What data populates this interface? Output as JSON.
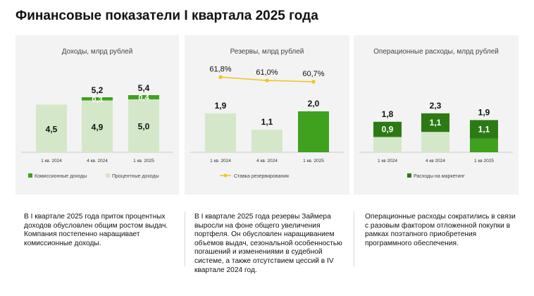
{
  "page": {
    "title": "Финансовые показатели I квартала 2025 года"
  },
  "colors": {
    "light": "#d4e8c9",
    "mid": "#3fa11e",
    "dark": "#2c7a14",
    "line": "#f0c419",
    "panel_bg": "#f2f3f2"
  },
  "chart_data": [
    {
      "type": "bar",
      "stacked": true,
      "title": "Доходы, млрд рублей",
      "categories": [
        "1 кв. 2024",
        "4 кв. 2024",
        "1 кв. 2025"
      ],
      "series": [
        {
          "name": "Процентные доходы",
          "values": [
            4.5,
            4.9,
            5.0
          ],
          "labels": [
            "4,5",
            "4,9",
            "5,0"
          ]
        },
        {
          "name": "Комиссионные доходы",
          "values": [
            0,
            0.3,
            0.4
          ],
          "labels": [
            "",
            "0,3",
            "0,4"
          ]
        }
      ],
      "totals": [
        "",
        "5,2",
        "5,4"
      ],
      "legend": [
        "Комиссионные доходы",
        "Процентные доходы"
      ],
      "legend_position": "bottom-left"
    },
    {
      "type": "bar",
      "title": "Резервы, млрд рублей",
      "categories": [
        "1 кв. 2024",
        "4 кв. 2024",
        "1 кв. 2025"
      ],
      "series": [
        {
          "values": [
            1.9,
            1.1,
            2.0
          ],
          "labels": [
            "1,9",
            "1,1",
            "2,0"
          ]
        },
        {
          "name": "Ставка резервирования",
          "type": "line",
          "values": [
            61.8,
            61.0,
            60.7
          ],
          "labels": [
            "61,8%",
            "61,0%",
            "60,7%"
          ]
        }
      ],
      "legend": [
        "Ставка резервирования"
      ],
      "legend_position": "bottom-left"
    },
    {
      "type": "bar",
      "stacked": true,
      "title": "Операционные расходы, млрд рублей",
      "categories": [
        "1 кв 2024",
        "4 кв 2024",
        "1 кв 2025"
      ],
      "series": [
        {
          "values": [
            0.9,
            1.2,
            0.8
          ]
        },
        {
          "name": "Расходы на маркетинг",
          "values": [
            0.9,
            1.1,
            1.1
          ],
          "labels": [
            "0,9",
            "1,1",
            "1,1"
          ]
        }
      ],
      "totals": [
        "1,8",
        "2,3",
        "1,9"
      ],
      "legend": [
        "Расходы на маркетинг"
      ],
      "legend_position": "bottom-left"
    }
  ],
  "descriptions": [
    "В I квартале 2025 года приток процентных доходов обусловлен общим ростом выдач. Компания  постепенно наращивает комиссионные доходы.",
    "В I квартале 2025 года резервы Займера выросли на фоне общего увеличения портфеля. Он обусловлен  наращиванием объемов выдач, сезональной особенностью погашений и изменениями в судебной системе, а также отсутствием цессий в IV квартале 2024 год.",
    "Операционные расходы сократились в связи с разовым фактором отложенной покупки в рамках поэтапного приобретения программного обеспечения."
  ]
}
